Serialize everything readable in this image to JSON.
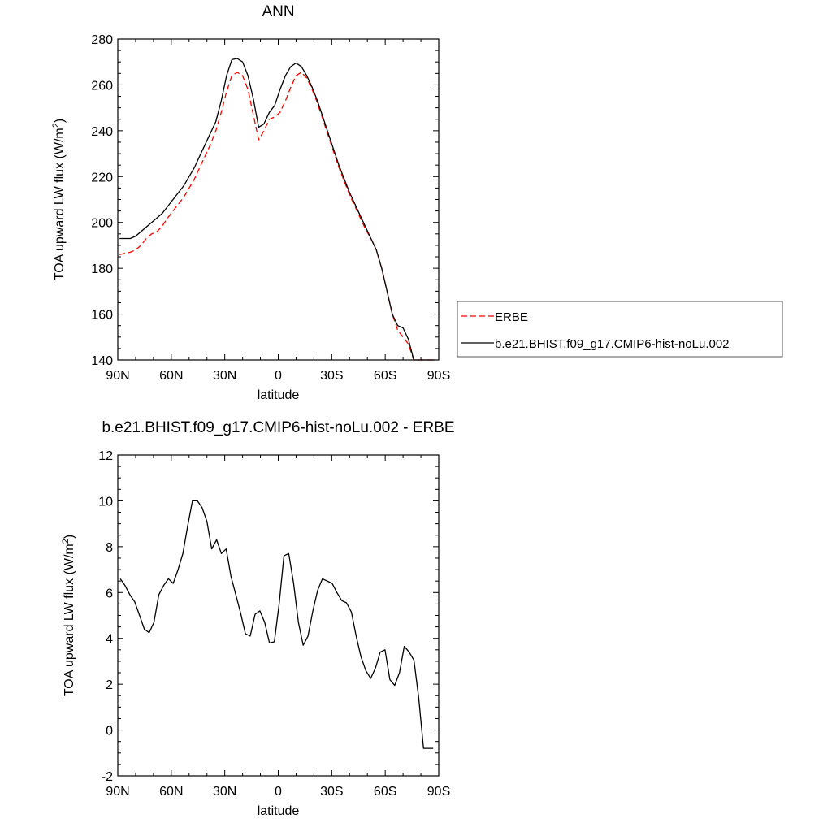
{
  "chart_data": [
    {
      "type": "line",
      "title": "ANN",
      "xlabel": "latitude",
      "ylabel": "TOA upward LW flux (W/m",
      "ylabel_sup": "2",
      "ylabel_end": ")",
      "xlim": [
        -90,
        90
      ],
      "ylim": [
        140,
        280
      ],
      "xticks": [
        -90,
        -60,
        -30,
        0,
        30,
        60,
        90
      ],
      "xticklabels": [
        "90N",
        "60N",
        "30N",
        "0",
        "30S",
        "60S",
        "90S"
      ],
      "yticks": [
        140,
        160,
        180,
        200,
        220,
        240,
        260,
        280
      ],
      "yticklabels": [
        "140",
        "160",
        "180",
        "200",
        "220",
        "240",
        "260",
        "280"
      ],
      "legend_position": "right-bottom, outside",
      "series": [
        {
          "name": "ERBE",
          "color": "#ff0000",
          "style": "dashed",
          "x": [
            -89,
            -86,
            -83,
            -80,
            -77,
            -74,
            -71,
            -68,
            -65,
            -62,
            -59,
            -56,
            -53,
            -50,
            -47,
            -44,
            -41,
            -38,
            -35,
            -32,
            -29,
            -26,
            -23,
            -20,
            -17,
            -14,
            -11,
            -8,
            -5,
            -2,
            1,
            4,
            7,
            10,
            13,
            16,
            19,
            22,
            25,
            28,
            31,
            34,
            37,
            40,
            43,
            46,
            49,
            52,
            55,
            58,
            61,
            64,
            67,
            70,
            73,
            76,
            79,
            82,
            85,
            88
          ],
          "y": [
            186,
            186.5,
            187,
            188,
            190,
            193,
            195,
            196,
            198.5,
            202,
            205,
            208,
            211,
            215,
            219,
            224,
            229,
            234,
            240,
            248,
            257,
            264,
            265.5,
            264,
            258,
            247,
            236,
            240,
            245,
            246,
            248,
            253,
            259,
            264,
            265.5,
            263,
            258,
            252,
            245,
            238,
            231,
            224,
            218,
            212,
            207,
            202,
            197,
            193,
            188,
            180,
            170,
            160,
            153,
            150,
            147,
            140,
            140,
            140,
            140,
            140
          ]
        },
        {
          "name": "b.e21.BHIST.f09_g17.CMIP6-hist-noLu.002",
          "color": "#000000",
          "style": "solid",
          "x": [
            -89,
            -86,
            -83,
            -80,
            -77,
            -74,
            -71,
            -68,
            -65,
            -62,
            -59,
            -56,
            -53,
            -50,
            -47,
            -44,
            -41,
            -38,
            -35,
            -32,
            -29,
            -26,
            -23,
            -20,
            -17,
            -14,
            -11,
            -8,
            -5,
            -2,
            1,
            4,
            7,
            10,
            13,
            16,
            19,
            22,
            25,
            28,
            31,
            34,
            37,
            40,
            43,
            46,
            49,
            52,
            55,
            58,
            61,
            64,
            67,
            70,
            73,
            76,
            79,
            82,
            85,
            88
          ],
          "y": [
            193,
            193,
            193,
            194,
            196,
            198,
            200,
            202,
            204,
            207,
            210,
            213,
            216,
            220,
            224,
            229,
            234,
            239,
            244,
            253,
            264,
            271,
            271.5,
            270,
            264,
            254,
            241.5,
            243,
            248,
            251,
            258,
            264,
            268,
            269.5,
            268,
            264,
            259,
            253,
            246,
            239,
            232,
            225,
            219,
            213,
            208,
            203,
            198,
            193,
            188,
            180,
            170,
            160,
            155,
            154,
            149,
            140,
            140,
            140,
            140,
            140
          ]
        }
      ]
    },
    {
      "type": "line",
      "title": "b.e21.BHIST.f09_g17.CMIP6-hist-noLu.002 - ERBE",
      "xlabel": "latitude",
      "ylabel": "TOA upward LW flux (W/m",
      "ylabel_sup": "2",
      "ylabel_end": ")",
      "xlim": [
        -90,
        90
      ],
      "ylim": [
        -2,
        12
      ],
      "xticks": [
        -90,
        -60,
        -30,
        0,
        30,
        60,
        90
      ],
      "xticklabels": [
        "90N",
        "60N",
        "30N",
        "0",
        "30S",
        "60S",
        "90S"
      ],
      "yticks": [
        -2,
        0,
        2,
        4,
        6,
        8,
        10,
        12
      ],
      "yticklabels": [
        "-2",
        "0",
        "2",
        "4",
        "6",
        "8",
        "10",
        "12"
      ],
      "series": [
        {
          "color": "#000000",
          "style": "solid",
          "x": [
            -88.6,
            -85.9,
            -83.2,
            -80.5,
            -77.8,
            -75.1,
            -72.4,
            -69.7,
            -67,
            -64.3,
            -61.6,
            -58.9,
            -56.2,
            -53.5,
            -50.8,
            -48.1,
            -45.4,
            -42.7,
            -40,
            -37.3,
            -34.6,
            -31.9,
            -29.2,
            -26.5,
            -23.8,
            -21.1,
            -18.4,
            -15.7,
            -13,
            -10.3,
            -7.6,
            -4.9,
            -2.2,
            0.5,
            3.2,
            5.9,
            8.6,
            11.3,
            14,
            16.7,
            19.4,
            22.1,
            24.8,
            27.5,
            30.2,
            32.9,
            35.6,
            38.3,
            41,
            43.7,
            46.4,
            49.1,
            51.8,
            54.5,
            57.2,
            59.9,
            62.6,
            65.3,
            68,
            70.7,
            73.4,
            76.1,
            78.8,
            81.5,
            84.2,
            86.9
          ],
          "y": [
            6.6,
            6.3,
            5.9,
            5.6,
            5.0,
            4.4,
            4.25,
            4.7,
            5.9,
            6.3,
            6.6,
            6.4,
            7.0,
            7.7,
            8.9,
            10.0,
            10.0,
            9.7,
            9.1,
            7.9,
            8.3,
            7.7,
            7.9,
            6.7,
            5.9,
            5.1,
            4.2,
            4.1,
            5.05,
            5.2,
            4.7,
            3.8,
            3.85,
            5.5,
            7.6,
            7.7,
            6.4,
            4.7,
            3.7,
            4.1,
            5.2,
            6.1,
            6.6,
            6.5,
            6.4,
            6.0,
            5.65,
            5.55,
            5.15,
            4.1,
            3.2,
            2.6,
            2.25,
            2.7,
            3.4,
            3.5,
            2.2,
            1.95,
            2.5,
            3.65,
            3.4,
            3.05,
            1.4,
            -0.8,
            -0.8,
            -0.8
          ]
        }
      ]
    }
  ]
}
